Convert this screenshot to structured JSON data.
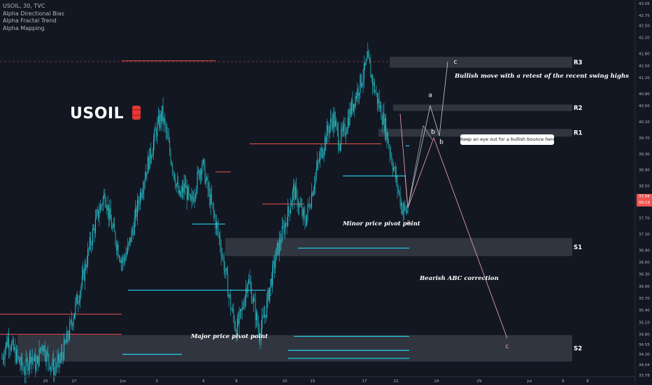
{
  "legend": {
    "header": "USOIL, 30, TVC",
    "indicators": [
      "Alpha Directional Bias",
      "Alpha Fractal Trend",
      "Alpha Mapping"
    ]
  },
  "banner": {
    "text": "USOIL"
  },
  "colors": {
    "background": "#131722",
    "candle_up": "#26c6da",
    "candle_down": "#26a69a",
    "zone_fill": "#4a4e59",
    "resistance_red": "#ef5350",
    "support_cyan": "#22d3ee",
    "projection_up": "#c9ccd3",
    "projection_down": "#f4a7b3"
  },
  "chart_data": {
    "type": "candlestick",
    "symbol": "USOIL",
    "timeframe": "30",
    "ylim": [
      33.78,
      43.05
    ],
    "y_ticks": [
      43.05,
      42.75,
      42.5,
      42.2,
      41.8,
      41.5,
      41.2,
      40.8,
      40.5,
      40.1,
      39.7,
      39.3,
      38.9,
      38.5,
      38.1,
      37.7,
      37.3,
      36.9,
      36.6,
      36.3,
      36.0,
      35.7,
      35.4,
      35.1,
      34.8,
      34.55,
      34.3,
      34.04,
      33.78
    ],
    "x_ticks": [
      "25",
      "27",
      "Jun",
      "3",
      "6",
      "8",
      "10",
      "15",
      "17",
      "22",
      "24",
      "29",
      "Jul",
      "6",
      "8"
    ],
    "current_price": "37.84",
    "countdown": "09:19",
    "zones": [
      {
        "name": "R3",
        "low": 41.45,
        "high": 41.72
      },
      {
        "name": "R2",
        "low": 40.37,
        "high": 40.53
      },
      {
        "name": "R1",
        "low": 39.73,
        "high": 39.92
      },
      {
        "name": "S1",
        "low": 36.75,
        "high": 37.2
      },
      {
        "name": "S2",
        "low": 34.12,
        "high": 34.78
      }
    ],
    "wave_labels": [
      "c",
      "a",
      "b",
      "b",
      "a",
      "c"
    ],
    "annotations": [
      "Bullish move with a retest of the recent swing highs",
      "Keep an eye out for a bullish bounce here",
      "Minor price pivot point",
      "Bearish ABC correction",
      "Major price pivot point"
    ],
    "price_series": [
      34.2,
      34.7,
      34.4,
      34.1,
      33.9,
      34.3,
      34.0,
      34.6,
      34.2,
      33.95,
      34.1,
      34.5,
      35.0,
      35.6,
      36.1,
      36.8,
      37.4,
      37.9,
      38.3,
      37.6,
      37.1,
      36.6,
      36.9,
      37.5,
      38.2,
      38.8,
      39.3,
      39.9,
      40.3,
      39.6,
      38.9,
      38.2,
      38.5,
      38.0,
      38.6,
      39.1,
      38.4,
      37.8,
      37.2,
      36.4,
      35.5,
      34.9,
      35.4,
      36.2,
      35.6,
      34.8,
      35.3,
      36.1,
      36.8,
      37.3,
      37.8,
      38.4,
      38.0,
      37.6,
      38.2,
      38.9,
      39.4,
      39.9,
      40.2,
      39.6,
      39.9,
      40.4,
      40.8,
      41.2,
      41.65,
      41.0,
      40.5,
      40.0,
      39.3,
      38.6,
      37.95,
      37.84
    ]
  }
}
